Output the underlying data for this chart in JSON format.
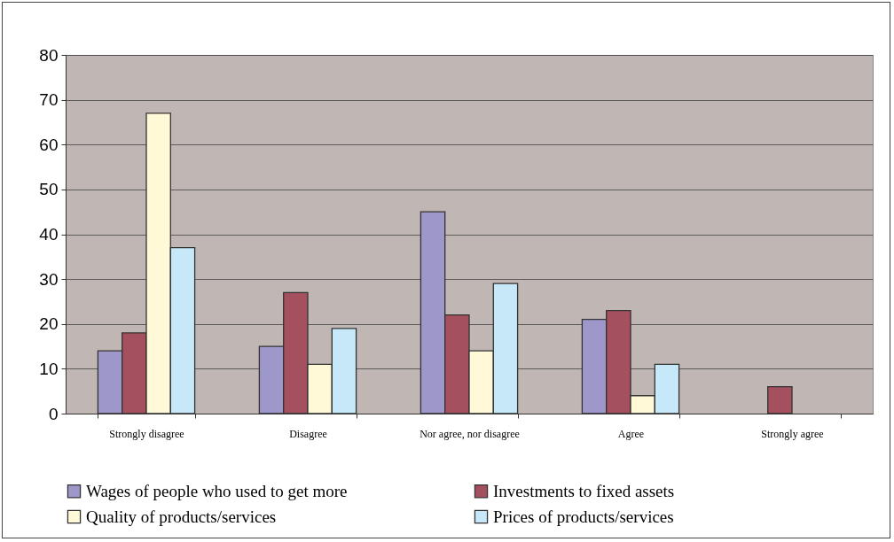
{
  "chart_data": {
    "type": "bar",
    "categories": [
      "Strongly disagree",
      "Disagree",
      "Nor agree, nor disagree",
      "Agree",
      "Strongly agree"
    ],
    "series": [
      {
        "name": "Wages of people who used to get more",
        "color": "#9e97c9",
        "values": [
          14,
          15,
          45,
          21,
          null
        ]
      },
      {
        "name": "Investments to fixed assets",
        "color": "#a5505e",
        "values": [
          18,
          27,
          22,
          23,
          6
        ]
      },
      {
        "name": "Quality of products/services",
        "color": "#fff9d8",
        "values": [
          67,
          11,
          14,
          4,
          null
        ]
      },
      {
        "name": "Prices of products/services",
        "color": "#c6e8f8",
        "values": [
          37,
          19,
          29,
          11,
          null
        ]
      }
    ],
    "ylim": [
      0,
      80
    ],
    "yticks": [
      0,
      10,
      20,
      30,
      40,
      50,
      60,
      70,
      80
    ],
    "grid": "y",
    "legend": "bottom"
  }
}
